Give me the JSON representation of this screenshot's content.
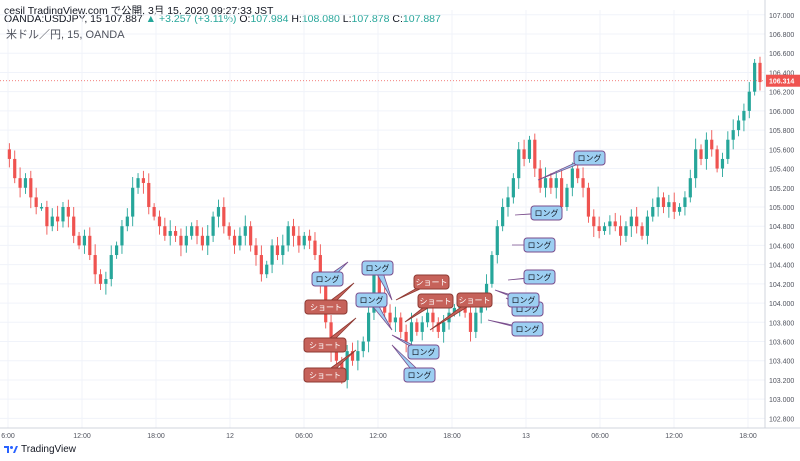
{
  "header": {
    "publish_line": "cesil TradingView.com で公開, 3月 15, 2020 09:27:33 JST",
    "symbol_prefix": "OANDA:USDJPY, 15",
    "last": "107.887",
    "change": "+3.257 (+3.11%)",
    "o_label": "O:",
    "o_value": "107.984",
    "h_label": "H:",
    "h_value": "108.080",
    "l_label": "L:",
    "l_value": "107.878",
    "c_label": "C:",
    "c_value": "107.887"
  },
  "chart_symbol": "米ドル／円, 15, OANDA",
  "price_axis": {
    "labels": [
      "107.000",
      "106.800",
      "106.600",
      "106.400",
      "106.200",
      "106.000",
      "105.800",
      "105.600",
      "105.400",
      "105.200",
      "105.000",
      "104.800",
      "104.600",
      "104.400",
      "104.200",
      "104.000",
      "103.800",
      "103.600",
      "103.400",
      "103.200",
      "103.000",
      "102.800"
    ],
    "current_price": "106.314"
  },
  "time_axis": {
    "labels": [
      "6:00",
      "12:00",
      "18:00",
      "12",
      "06:00",
      "12:00",
      "18:00",
      "13",
      "06:00",
      "12:00",
      "18:00"
    ]
  },
  "annotations": [
    {
      "text": "ロング",
      "type": "long"
    },
    {
      "text": "ロング",
      "type": "long"
    },
    {
      "text": "ショート",
      "type": "short"
    },
    {
      "text": "ロング",
      "type": "long"
    },
    {
      "text": "ショート",
      "type": "short"
    },
    {
      "text": "ショート",
      "type": "short"
    },
    {
      "text": "ロング",
      "type": "long"
    },
    {
      "text": "ショート",
      "type": "short"
    },
    {
      "text": "ショート",
      "type": "short"
    },
    {
      "text": "ロング",
      "type": "long"
    },
    {
      "text": "ショート",
      "type": "short"
    },
    {
      "text": "ロング",
      "type": "long"
    },
    {
      "text": "ロング",
      "type": "long"
    },
    {
      "text": "ロング",
      "type": "long"
    },
    {
      "text": "ロング",
      "type": "long"
    },
    {
      "text": "ロング",
      "type": "long"
    },
    {
      "text": "ロング",
      "type": "long"
    },
    {
      "text": "ロング",
      "type": "long"
    }
  ],
  "footer": {
    "brand": "TradingView"
  },
  "colors": {
    "up": "#26a69a",
    "down": "#ef5350",
    "long_fill": "#9ccff2",
    "short_fill": "#c6625a",
    "grid": "#f0f3fa",
    "axis_text": "#50535e"
  },
  "chart_data": {
    "type": "candlestick",
    "price_range": [
      102.7,
      107.05
    ],
    "time_ticks": [
      "6:00",
      "12:00",
      "18:00",
      "12",
      "06:00",
      "12:00",
      "18:00",
      "13",
      "06:00",
      "12:00",
      "18:00"
    ],
    "last_price": 106.314,
    "approx_path": [
      105.6,
      105.5,
      105.3,
      105.2,
      105.3,
      105.1,
      105.0,
      105.0,
      104.8,
      104.9,
      104.85,
      105.0,
      104.9,
      104.7,
      104.6,
      104.7,
      104.5,
      104.3,
      104.2,
      104.25,
      104.5,
      104.6,
      104.8,
      104.9,
      105.2,
      105.3,
      105.25,
      105.0,
      104.9,
      104.8,
      104.7,
      104.75,
      104.7,
      104.6,
      104.7,
      104.8,
      104.7,
      104.6,
      104.7,
      104.9,
      105.0,
      104.8,
      104.7,
      104.6,
      104.7,
      104.8,
      104.6,
      104.5,
      104.3,
      104.4,
      104.6,
      104.5,
      104.6,
      104.8,
      104.7,
      104.6,
      104.7,
      104.65,
      104.5,
      104.2,
      103.8,
      103.5,
      103.4,
      103.2,
      103.5,
      103.4,
      103.5,
      103.6,
      103.9,
      104.3,
      104.1,
      103.9,
      103.8,
      103.85,
      103.7,
      103.6,
      103.8,
      103.7,
      103.8,
      103.9,
      103.8,
      103.7,
      103.8,
      103.9,
      103.95,
      104.0,
      103.9,
      103.7,
      103.9,
      104.0,
      104.2,
      104.5,
      104.8,
      105.0,
      105.1,
      105.3,
      105.6,
      105.5,
      105.7,
      105.4,
      105.2,
      105.3,
      105.2,
      105.3,
      105.0,
      105.2,
      105.4,
      105.3,
      105.2,
      104.9,
      104.8,
      104.75,
      104.8,
      104.85,
      104.8,
      104.7,
      104.8,
      104.9,
      104.8,
      104.7,
      104.9,
      105.0,
      105.1,
      105.0,
      105.05,
      104.95,
      105.0,
      105.1,
      105.3,
      105.6,
      105.5,
      105.7,
      105.6,
      105.4,
      105.5,
      105.7,
      105.8,
      105.9,
      106.0,
      106.2,
      106.5,
      106.3
    ]
  }
}
